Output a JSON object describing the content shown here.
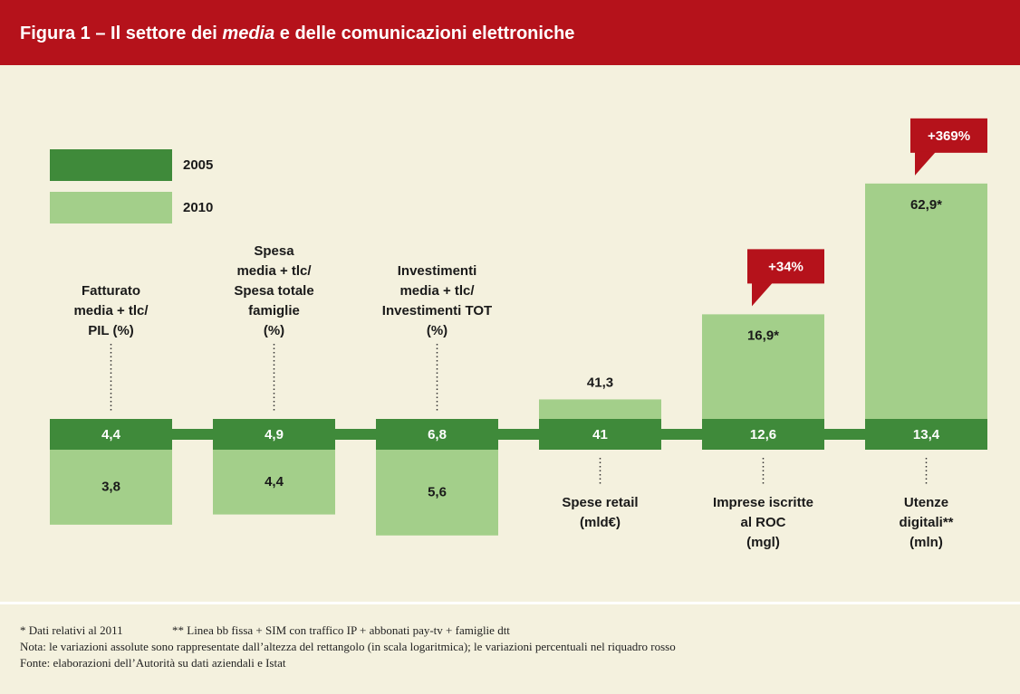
{
  "chart_data": {
    "type": "bar",
    "title_parts": [
      "Figura 1 – Il settore dei ",
      "media",
      " e delle comunicazioni elettroniche"
    ],
    "log_scale": true,
    "categories": [
      [
        "Fatturato",
        "media + tlc/",
        "PIL (%)"
      ],
      [
        "Spesa",
        "media + tlc/",
        "Spesa totale",
        "famiglie",
        "(%)"
      ],
      [
        "Investimenti",
        "media + tlc/",
        "Investimenti TOT",
        "(%)"
      ],
      [
        "Spese retail",
        "(mld€)"
      ],
      [
        "Imprese iscritte",
        "al ROC",
        "(mgl)"
      ],
      [
        "Utenze",
        "digitali**",
        "(mln)"
      ]
    ],
    "series": [
      {
        "name": "2005",
        "color": "#3f8a3a",
        "values": [
          4.4,
          4.9,
          6.8,
          41,
          12.6,
          13.4
        ],
        "value_labels": [
          "4,4",
          "4,9",
          "6,8",
          "41",
          "12,6",
          "13,4"
        ]
      },
      {
        "name": "2010",
        "color": "#a3cf8a",
        "values": [
          3.8,
          4.4,
          5.6,
          41.3,
          16.9,
          62.9
        ],
        "value_labels": [
          "3,8",
          "4,4",
          "5,6",
          "41,3",
          "16,9*",
          "62,9*"
        ]
      }
    ],
    "annotations": [
      {
        "category": 4,
        "text": "+34%"
      },
      {
        "category": 5,
        "text": "+369%"
      }
    ],
    "annotation_color": "#b5121b",
    "footnotes": [
      "* Dati relativi al 2011",
      "** Linea bb fissa + SIM con traffico IP + abbonati pay-tv + famiglie dtt",
      "Nota: le variazioni assolute sono rappresentate dall’altezza del rettangolo (in scala logaritmica); le variazioni percentuali nel riquadro rosso",
      "Fonte: elaborazioni dell’Autorità su dati aziendali e Istat"
    ]
  }
}
